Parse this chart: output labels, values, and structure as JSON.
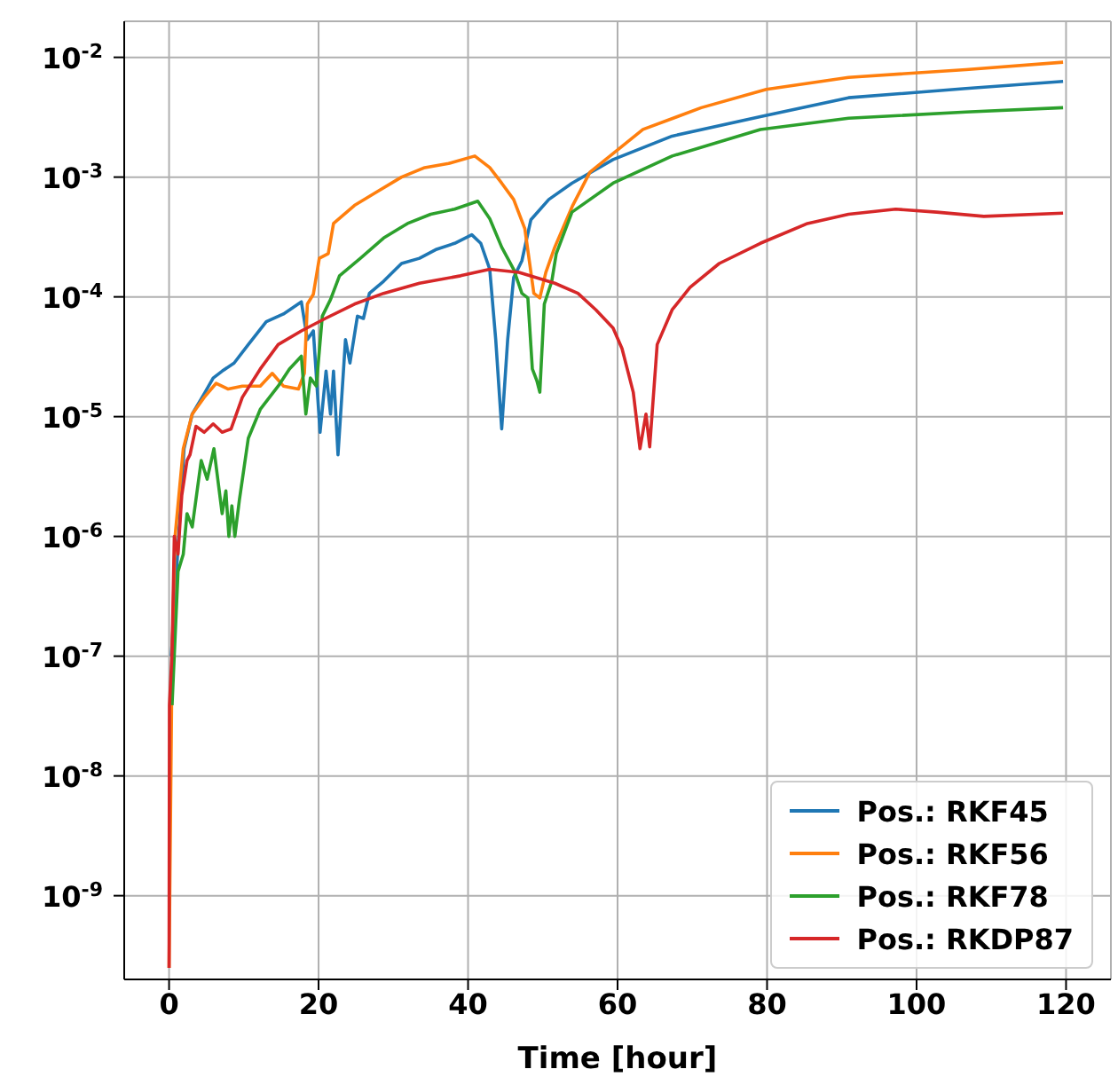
{
  "chart_data": {
    "type": "line",
    "xlabel": "Time [hour]",
    "xlim": [
      -6,
      126
    ],
    "xticks": [
      0,
      20,
      40,
      60,
      80,
      100,
      120
    ],
    "ylim": [
      2e-10,
      0.02
    ],
    "log": "y",
    "grid": true,
    "legend": "bottom right",
    "yticks": [
      {
        "value": 1e-09,
        "label": "10$^{-9}$"
      },
      {
        "value": 1e-08,
        "label": "10$^{-8}$"
      },
      {
        "value": 1e-07,
        "label": "10$^{-7}$"
      },
      {
        "value": 1e-06,
        "label": "10$^{-6}$"
      },
      {
        "value": 1e-05,
        "label": "10$^{-5}$"
      },
      {
        "value": 0.0001,
        "label": "10$^{-4}$"
      },
      {
        "value": 0.001,
        "label": "10$^{-3}$"
      },
      {
        "value": 0.01,
        "label": "10$^{-2}$"
      }
    ],
    "series": [
      {
        "name": "Pos.: RKF45",
        "color": "#1f77b4",
        "x": [
          0.3,
          2.0,
          3.1,
          4.7,
          5.9,
          7.1,
          8.7,
          10.6,
          13.0,
          15.3,
          17.7,
          18.5,
          19.3,
          20.2,
          21.0,
          21.6,
          22.0,
          22.6,
          23.6,
          24.2,
          25.2,
          26.0,
          26.8,
          28.7,
          31.1,
          33.5,
          35.8,
          38.2,
          40.5,
          41.7,
          42.9,
          43.7,
          44.5,
          45.3,
          46.1,
          47.2,
          48.4,
          50.8,
          53.9,
          59.4,
          67.3,
          79.1,
          90.9,
          106.6,
          119.6
        ],
        "values": [
          1e-07,
          5.4e-06,
          1.05e-05,
          1.55e-05,
          2.1e-05,
          2.4e-05,
          2.8e-05,
          4e-05,
          6.2e-05,
          7.2e-05,
          9.1e-05,
          4.4e-05,
          5.2e-05,
          7.4e-06,
          2.4e-05,
          1.05e-05,
          2.4e-05,
          4.8e-06,
          4.4e-05,
          2.8e-05,
          6.9e-05,
          6.6e-05,
          0.000107,
          0.000135,
          0.00019,
          0.00021,
          0.00025,
          0.00028,
          0.00033,
          0.00028,
          0.00017,
          4.4e-05,
          7.9e-06,
          4.4e-05,
          0.000145,
          0.0002,
          0.00044,
          0.00065,
          0.00089,
          0.0014,
          0.0022,
          0.0032,
          0.0046,
          0.0055,
          0.0063
        ]
      },
      {
        "name": "Pos.: RKF56",
        "color": "#ff7f0e",
        "x": [
          0,
          0.4,
          0.8,
          1.9,
          3.1,
          4.7,
          6.3,
          7.9,
          9.8,
          12.2,
          13.8,
          15.3,
          17.3,
          18.1,
          18.5,
          19.3,
          20.1,
          21.3,
          22.0,
          24.8,
          27.9,
          31.1,
          34.2,
          37.4,
          40.9,
          42.9,
          44.5,
          46.1,
          47.6,
          48.8,
          49.6,
          50.4,
          51.6,
          54.0,
          56.3,
          63.4,
          71.2,
          79.9,
          90.9,
          106.6,
          119.6
        ],
        "values": [
          2.5e-10,
          1e-07,
          1e-06,
          5.4e-06,
          1.05e-05,
          1.45e-05,
          1.9e-05,
          1.7e-05,
          1.8e-05,
          1.8e-05,
          2.3e-05,
          1.8e-05,
          1.7e-05,
          2.3e-05,
          8.7e-05,
          0.000105,
          0.00021,
          0.00023,
          0.00041,
          0.00058,
          0.00076,
          0.001,
          0.0012,
          0.0013,
          0.0015,
          0.0012,
          0.00089,
          0.00065,
          0.00037,
          0.000107,
          9.8e-05,
          0.00016,
          0.00026,
          0.00058,
          0.0011,
          0.0025,
          0.0038,
          0.0054,
          0.0068,
          0.0079,
          0.0091
        ]
      },
      {
        "name": "Pos.: RKF78",
        "color": "#2ca02c",
        "x": [
          0.4,
          1.2,
          1.9,
          2.4,
          3.1,
          4.3,
          5.1,
          6.0,
          7.1,
          7.6,
          8.0,
          8.4,
          8.8,
          9.4,
          10.6,
          12.2,
          14.6,
          16.1,
          17.7,
          18.3,
          18.9,
          19.7,
          20.5,
          21.6,
          22.8,
          25.6,
          28.7,
          31.9,
          35.0,
          38.2,
          41.3,
          42.9,
          44.5,
          46.1,
          47.2,
          48.0,
          48.6,
          49.2,
          49.6,
          50.2,
          51.2,
          51.8,
          53.9,
          59.4,
          67.3,
          79.1,
          90.9,
          106.6,
          119.6
        ],
        "values": [
          3.9e-08,
          5.1e-07,
          7.1e-07,
          1.55e-06,
          1.2e-06,
          4.3e-06,
          3e-06,
          5.4e-06,
          1.55e-06,
          2.4e-06,
          1e-06,
          1.8e-06,
          1e-06,
          2e-06,
          6.6e-06,
          1.15e-05,
          1.8e-05,
          2.5e-05,
          3.2e-05,
          1.05e-05,
          2.1e-05,
          1.8e-05,
          6.9e-05,
          9.5e-05,
          0.00015,
          0.00021,
          0.00031,
          0.00041,
          0.00049,
          0.00054,
          0.00063,
          0.00045,
          0.00026,
          0.00017,
          0.000107,
          9.8e-05,
          2.5e-05,
          2e-05,
          1.6e-05,
          8.7e-05,
          0.000135,
          0.00023,
          0.00051,
          0.00089,
          0.0015,
          0.0025,
          0.0031,
          0.0035,
          0.0038
        ]
      },
      {
        "name": "Pos.: RKDP87",
        "color": "#d62728",
        "x": [
          0,
          0.05,
          0.4,
          0.7,
          1.2,
          1.7,
          2.4,
          2.8,
          3.6,
          4.7,
          5.9,
          7.1,
          8.3,
          9.8,
          12.2,
          14.6,
          17.7,
          20.9,
          24.8,
          28.7,
          33.5,
          39.0,
          42.9,
          46.8,
          51.6,
          54.7,
          57.1,
          59.4,
          60.6,
          62.1,
          63.0,
          63.8,
          64.3,
          65.3,
          67.3,
          69.7,
          73.6,
          79.1,
          85.4,
          90.9,
          97.2,
          102.7,
          109.0,
          119.6
        ],
        "values": [
          2.5e-10,
          3.9e-08,
          1.07e-07,
          1e-06,
          7.1e-07,
          2.2e-06,
          4.3e-06,
          4.8e-06,
          8.3e-06,
          7.4e-06,
          8.7e-06,
          7.4e-06,
          7.9e-06,
          1.45e-05,
          2.5e-05,
          4e-05,
          5.2e-05,
          6.6e-05,
          8.7e-05,
          0.000107,
          0.00013,
          0.00015,
          0.00017,
          0.00016,
          0.00013,
          0.000107,
          7.8e-05,
          5.5e-05,
          3.7e-05,
          1.6e-05,
          5.4e-06,
          1.05e-05,
          5.6e-06,
          4e-05,
          7.8e-05,
          0.00012,
          0.00019,
          0.00028,
          0.00041,
          0.00049,
          0.00054,
          0.00051,
          0.00047,
          0.0005
        ]
      }
    ]
  }
}
